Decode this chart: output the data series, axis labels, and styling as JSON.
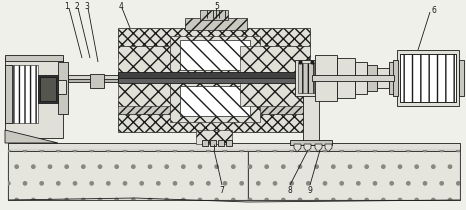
{
  "bg_color": "#f0f0eb",
  "line_color": "#1a1a1a",
  "lw": 0.6,
  "white": "#ffffff",
  "light_gray": "#e0e0d8",
  "mid_gray": "#c8c8c0",
  "dark_gray": "#a0a0a0"
}
